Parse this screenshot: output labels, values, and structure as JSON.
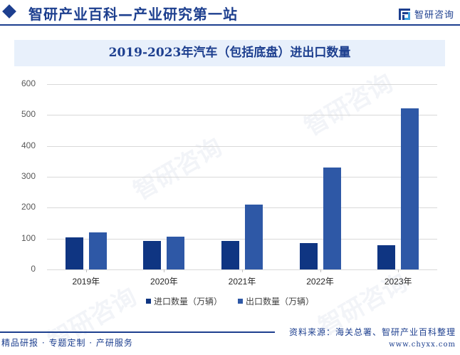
{
  "header": {
    "title": "智研产业百科—产业研究第一站",
    "brand_name": "智研咨询",
    "logo_icon": "chyxx-logo-icon"
  },
  "chart_title": "2019-2023年汽车（包括底盘）进出口数量",
  "legend": [
    {
      "label": "进口数量（万辆）",
      "color": "#0f3582"
    },
    {
      "label": "出口数量（万辆）",
      "color": "#2e58a6"
    }
  ],
  "y_ticks": [
    "0",
    "100",
    "200",
    "300",
    "400",
    "500",
    "600"
  ],
  "x_ticks": [
    "2019年",
    "2020年",
    "2021年",
    "2022年",
    "2023年"
  ],
  "footer": {
    "left": "精品研报 · 专题定制 · 产研服务",
    "source": "资料来源：海关总署、智研产业百科整理",
    "url": "www.chyxx.com"
  },
  "watermark": "智研咨询",
  "chart_data": {
    "type": "bar",
    "title": "2019-2023年汽车（包括底盘）进出口数量",
    "categories": [
      "2019年",
      "2020年",
      "2021年",
      "2022年",
      "2023年"
    ],
    "series": [
      {
        "name": "进口数量（万辆）",
        "values": [
          104,
          93,
          93,
          86,
          79
        ],
        "color": "#0f3582"
      },
      {
        "name": "出口数量（万辆）",
        "values": [
          120,
          107,
          210,
          331,
          522
        ],
        "color": "#2e58a6"
      }
    ],
    "xlabel": "",
    "ylabel": "",
    "ylim": [
      0,
      600
    ],
    "yticks": [
      0,
      100,
      200,
      300,
      400,
      500,
      600
    ],
    "grid": true,
    "legend_position": "bottom"
  }
}
